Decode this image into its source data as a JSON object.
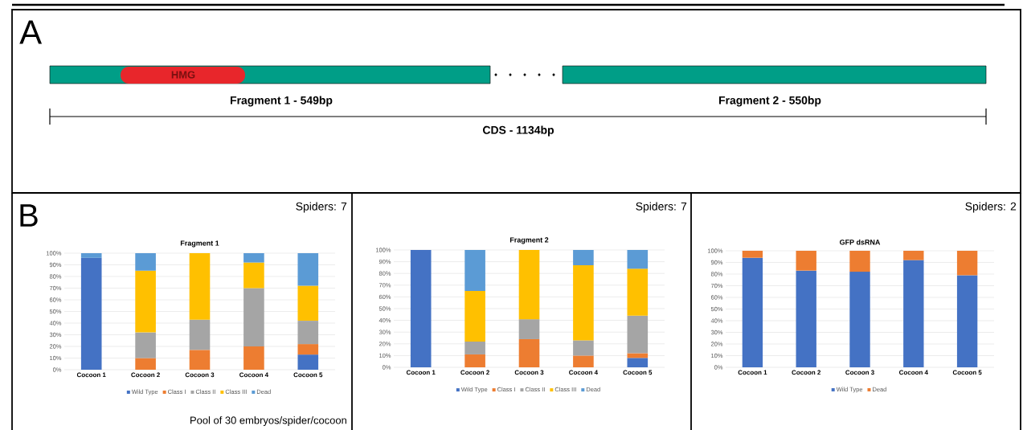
{
  "chart_data": [
    {
      "type": "other",
      "annotations": [
        "A",
        "HMG",
        "Fragment 1 - 549bp",
        "Fragment 2 - 550bp",
        "CDS - 1134bp"
      ]
    },
    {
      "type": "bar",
      "stacked": true,
      "title": "Fragment 1",
      "categories": [
        "Cocoon 1",
        "Cocoon 2",
        "Cocoon 3",
        "Cocoon 4",
        "Cocoon 5"
      ],
      "ylim": [
        0,
        100
      ],
      "yticks": [
        {
          "value": 0,
          "label": "0%"
        },
        {
          "value": 10,
          "label": "10%"
        },
        {
          "value": 20,
          "label": "20%"
        },
        {
          "value": 30,
          "label": "30%"
        },
        {
          "value": 40,
          "label": "40%"
        },
        {
          "value": 50,
          "label": "50%"
        },
        {
          "value": 60,
          "label": "60%"
        },
        {
          "value": 70,
          "label": "70%"
        },
        {
          "value": 80,
          "label": "80%"
        },
        {
          "value": 90,
          "label": "90%"
        },
        {
          "value": 100,
          "label": "100%"
        }
      ],
      "grid": "y",
      "legend": "bottom",
      "annotations": [
        "B",
        "Spiders: 7",
        "Pool of 30 embryos/spider/cocoon"
      ],
      "series": [
        {
          "name": "Wild Type",
          "color": "#4472c4",
          "values": [
            96,
            null,
            null,
            null,
            13
          ]
        },
        {
          "name": "Class I",
          "color": "#ed7d31",
          "values": [
            null,
            10,
            17,
            20,
            9
          ]
        },
        {
          "name": "Class II",
          "color": "#a5a5a5",
          "values": [
            null,
            22,
            26,
            50,
            20
          ]
        },
        {
          "name": "Class III",
          "color": "#ffc000",
          "values": [
            null,
            53,
            57,
            22,
            30
          ]
        },
        {
          "name": "Dead",
          "color": "#5b9bd5",
          "values": [
            4,
            15,
            null,
            8,
            28
          ]
        }
      ]
    },
    {
      "type": "bar",
      "stacked": true,
      "title": "Fragment 2",
      "categories": [
        "Cocoon 1",
        "Cocoon 2",
        "Cocoon 3",
        "Cocoon 4",
        "Cocoon 5"
      ],
      "ylim": [
        0,
        100
      ],
      "yticks": [
        {
          "value": 0,
          "label": "0%"
        },
        {
          "value": 10,
          "label": "10%"
        },
        {
          "value": 20,
          "label": "20%"
        },
        {
          "value": 30,
          "label": "30%"
        },
        {
          "value": 40,
          "label": "40%"
        },
        {
          "value": 50,
          "label": "50%"
        },
        {
          "value": 60,
          "label": "60%"
        },
        {
          "value": 70,
          "label": "70%"
        },
        {
          "value": 80,
          "label": "80%"
        },
        {
          "value": 90,
          "label": "90%"
        },
        {
          "value": 100,
          "label": "100%"
        }
      ],
      "grid": "y",
      "legend": "bottom",
      "annotations": [
        "Spiders: 7"
      ],
      "series": [
        {
          "name": "Wild Type",
          "color": "#4472c4",
          "values": [
            100,
            null,
            null,
            null,
            8
          ]
        },
        {
          "name": "Class I",
          "color": "#ed7d31",
          "values": [
            null,
            11,
            24,
            10,
            4
          ]
        },
        {
          "name": "Class II",
          "color": "#a5a5a5",
          "values": [
            null,
            11,
            17,
            13,
            32
          ]
        },
        {
          "name": "Class III",
          "color": "#ffc000",
          "values": [
            null,
            43,
            59,
            64,
            40
          ]
        },
        {
          "name": "Dead",
          "color": "#5b9bd5",
          "values": [
            null,
            35,
            null,
            13,
            16
          ]
        }
      ]
    },
    {
      "type": "bar",
      "stacked": true,
      "title": "GFP dsRNA",
      "categories": [
        "Cocoon 1",
        "Cocoon 2",
        "Cocoon 3",
        "Cocoon 4",
        "Cocoon 5"
      ],
      "ylim": [
        0,
        100
      ],
      "yticks": [
        {
          "value": 0,
          "label": "0%"
        },
        {
          "value": 10,
          "label": "10%"
        },
        {
          "value": 20,
          "label": "20%"
        },
        {
          "value": 30,
          "label": "30%"
        },
        {
          "value": 40,
          "label": "40%"
        },
        {
          "value": 50,
          "label": "50%"
        },
        {
          "value": 60,
          "label": "60%"
        },
        {
          "value": 70,
          "label": "70%"
        },
        {
          "value": 80,
          "label": "80%"
        },
        {
          "value": 90,
          "label": "90%"
        },
        {
          "value": 100,
          "label": "100%"
        }
      ],
      "grid": "y",
      "legend": "bottom",
      "annotations": [
        "Spiders: 2"
      ],
      "series": [
        {
          "name": "Wild Type",
          "color": "#4472c4",
          "values": [
            94,
            83,
            82,
            92,
            79
          ]
        },
        {
          "name": "Dead",
          "color": "#ed7d31",
          "values": [
            6,
            17,
            18,
            8,
            21
          ]
        }
      ]
    }
  ]
}
